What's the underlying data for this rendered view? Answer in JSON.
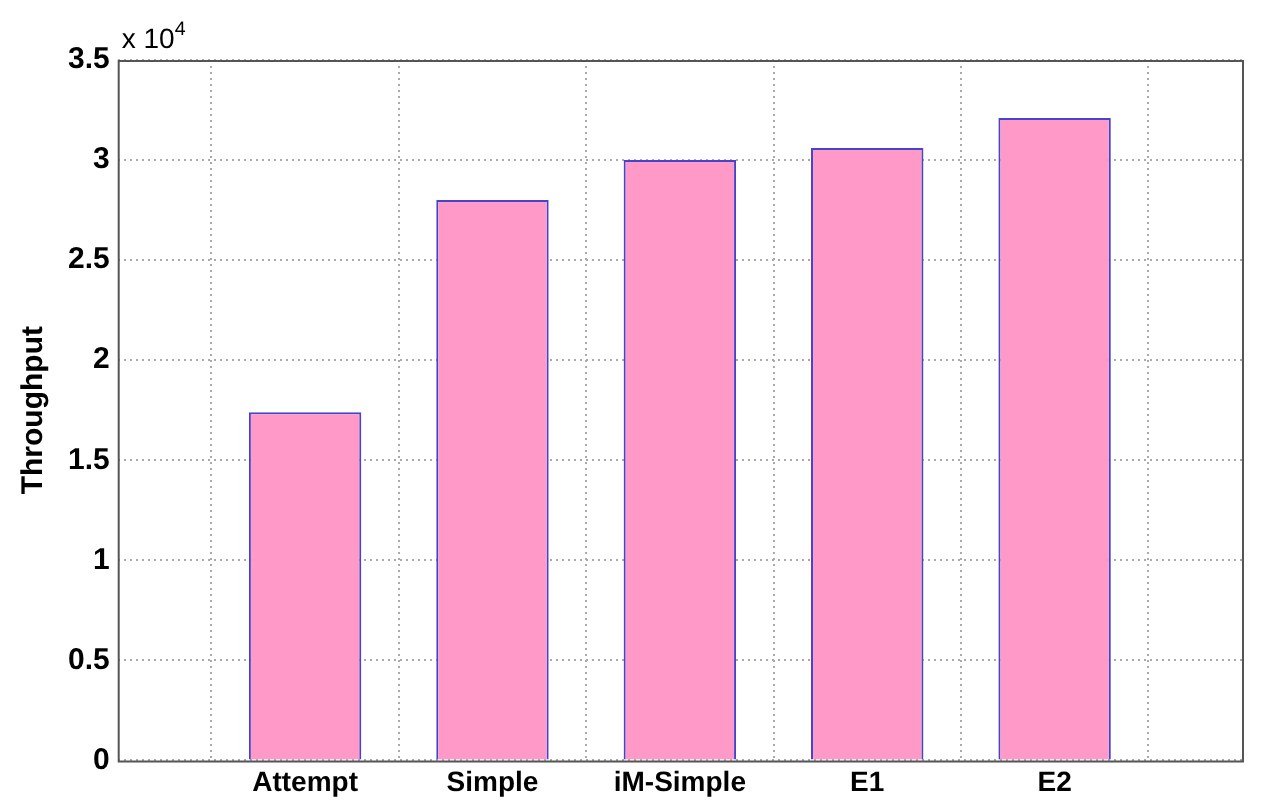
{
  "chart_data": {
    "type": "bar",
    "ylabel": "Throughput",
    "categories": [
      "Attempt",
      "Simple",
      "iM-Simple",
      "E1",
      "E2"
    ],
    "values": [
      1.74,
      2.8,
      3.0,
      3.06,
      3.21
    ],
    "color": "#ff99c8",
    "ylim": [
      0,
      3.5
    ],
    "yticks": [
      0,
      0.5,
      1,
      1.5,
      2,
      2.5,
      3,
      3.5
    ],
    "annotations": [
      "x 10$^{4}$"
    ],
    "grid": true
  }
}
